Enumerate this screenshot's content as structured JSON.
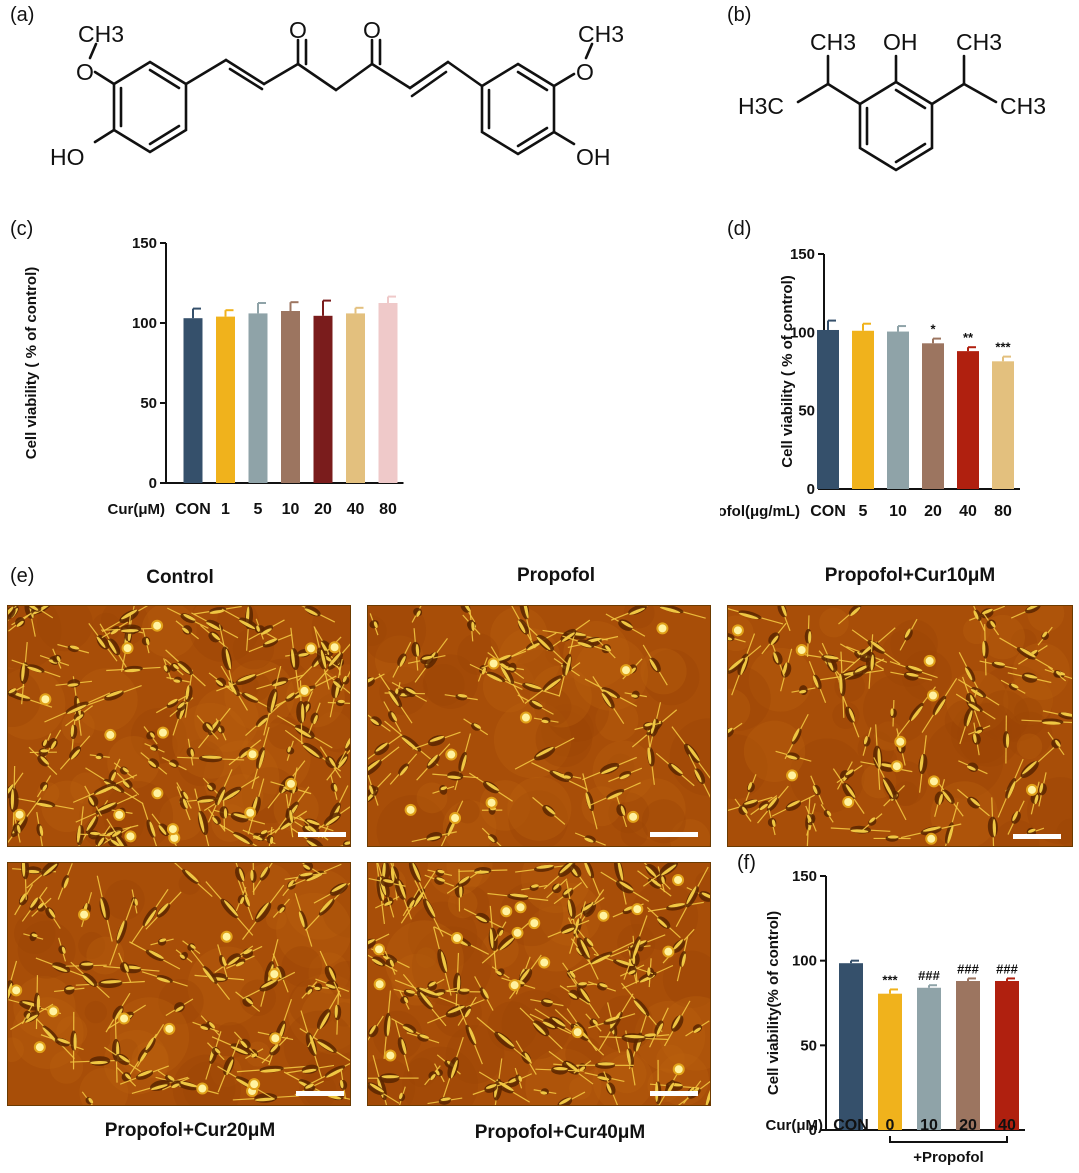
{
  "panels": {
    "a": "(a)",
    "b": "(b)",
    "c": "(c)",
    "d": "(d)",
    "e": "(e)",
    "f": "(f)"
  },
  "structure_a": {
    "och3_left": "CH3",
    "o_left": "O",
    "ho_left": "HO",
    "ketone_o1": "O",
    "ketone_o2": "O",
    "och3_right": "CH3",
    "o_right": "O",
    "oh_right": "OH"
  },
  "structure_b": {
    "ch3_top_left": "CH3",
    "oh": "OH",
    "ch3_top_right": "CH3",
    "h3c_left": "H3C",
    "ch3_right": "CH3"
  },
  "microscopy": {
    "titles": [
      "Control",
      "Propofol",
      "Propofol+Cur10μM",
      "Propofol+Cur20μM",
      "Propofol+Cur40μM"
    ]
  },
  "chart_data": [
    {
      "panel": "c",
      "type": "bar",
      "ylabel": "Cell viability ( % of control)",
      "xlabel_prefix": "Cur(μM)",
      "categories": [
        "CON",
        "1",
        "5",
        "10",
        "20",
        "40",
        "80"
      ],
      "values": [
        103,
        104,
        106,
        107.5,
        104.5,
        106,
        112.5
      ],
      "errors": [
        6,
        4,
        6.5,
        5.5,
        9.5,
        3.5,
        4
      ],
      "colors": [
        "#35506b",
        "#f0b21c",
        "#8fa3a8",
        "#9c7560",
        "#7a1c1c",
        "#e3c07e",
        "#efc9c9"
      ],
      "ylim": [
        0,
        150
      ],
      "yticks": [
        0,
        50,
        100,
        150
      ],
      "annotations": [
        "",
        "",
        "",
        "",
        "",
        "",
        ""
      ]
    },
    {
      "panel": "d",
      "type": "bar",
      "ylabel": "Cell viability ( % of control)",
      "xlabel_prefix": "Propofol(μg/mL)",
      "categories": [
        "CON",
        "5",
        "10",
        "20",
        "40",
        "80"
      ],
      "values": [
        101.5,
        101,
        100.5,
        93,
        88,
        81.5
      ],
      "errors": [
        6,
        4.5,
        3.5,
        3,
        2.5,
        3
      ],
      "colors": [
        "#35506b",
        "#f0b21c",
        "#8fa3a8",
        "#9c7560",
        "#b0200f",
        "#e3c07e"
      ],
      "ylim": [
        0,
        150
      ],
      "yticks": [
        0,
        50,
        100,
        150
      ],
      "annotations": [
        "",
        "",
        "",
        "*",
        "**",
        "***"
      ]
    },
    {
      "panel": "f",
      "type": "bar",
      "ylabel": "Cell viability(% of control)",
      "xlabel_prefix": "Cur(μM)",
      "categories": [
        "CON",
        "0",
        "10",
        "20",
        "40"
      ],
      "values": [
        98.5,
        80.5,
        84,
        88,
        88
      ],
      "errors": [
        1.5,
        2.5,
        1.5,
        1.5,
        1.5
      ],
      "colors": [
        "#35506b",
        "#f0b21c",
        "#8fa3a8",
        "#9c7560",
        "#b0200f"
      ],
      "ylim": [
        0,
        150
      ],
      "yticks": [
        0,
        50,
        100,
        150
      ],
      "annotations": [
        "",
        "***",
        "###",
        "###",
        "###"
      ],
      "bracket_label": "+Propofol"
    }
  ]
}
